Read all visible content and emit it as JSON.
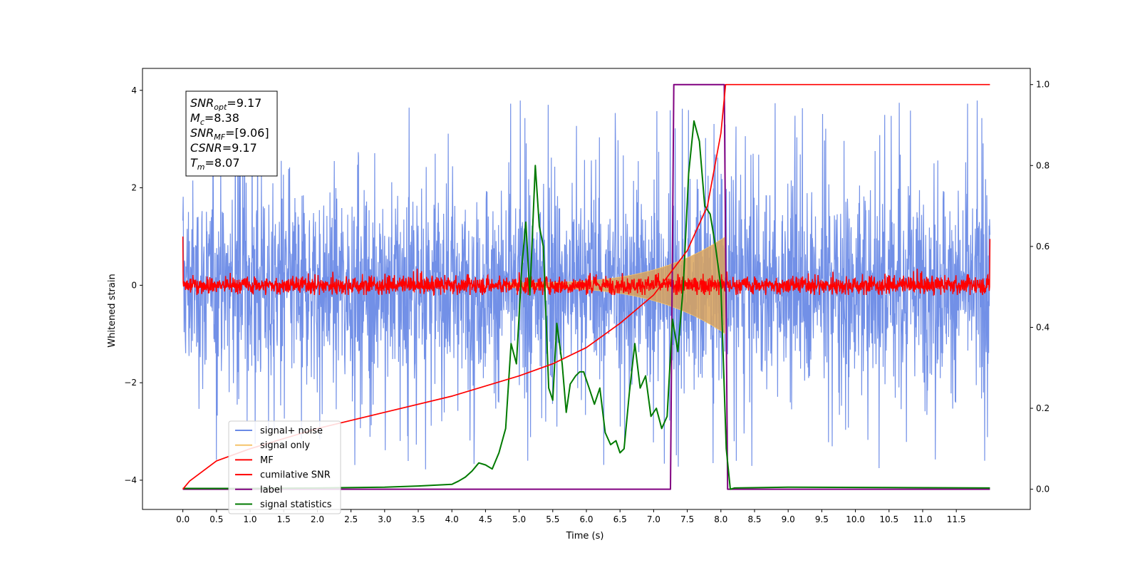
{
  "chart_data": {
    "type": "line",
    "xlabel": "Time (s)",
    "ylabel": "Whitened strain",
    "xlim": [
      -0.6,
      12.6
    ],
    "ylim_left": [
      -4.6,
      4.45
    ],
    "ylim_right": [
      -0.05,
      1.04
    ],
    "x_ticks": [
      "0.0",
      "0.5",
      "1.0",
      "1.5",
      "2.0",
      "2.5",
      "3.0",
      "3.5",
      "4.0",
      "4.5",
      "5.0",
      "5.5",
      "6.0",
      "6.5",
      "7.0",
      "7.5",
      "8.0",
      "8.5",
      "9.0",
      "9.5",
      "10.0",
      "10.5",
      "11.0",
      "11.5"
    ],
    "y_ticks_left": [
      "4",
      "2",
      "0",
      "−2",
      "−4"
    ],
    "y_ticks_right": [
      "1.0",
      "0.8",
      "0.6",
      "0.4",
      "0.2",
      "0.0"
    ],
    "legend_position": "lower-left",
    "annotation": {
      "snr_opt": {
        "base": "SNR",
        "sub": "opt",
        "value": "=9.17"
      },
      "mc": {
        "base": "M",
        "sub": "c",
        "value": "=8.38"
      },
      "snr_mf": {
        "base": "SNR",
        "sub": "MF",
        "value": "=[9.06]"
      },
      "csnr": {
        "base": "CSNR",
        "value": "=9.17"
      },
      "tm": {
        "base": "T",
        "sub": "m",
        "value": "=8.07"
      }
    },
    "series": [
      {
        "name": "signal+ noise",
        "axis": "left",
        "color": "#6a8ae6",
        "description": "noise band roughly ±2.2 with spikes to ±3.7, x from 0 to 12"
      },
      {
        "name": "signal only",
        "axis": "left",
        "color": "#f5c46a",
        "description": "chirp, amplitude grows from ~0.05 at t=5 to ~1.0 at t=8.07, then 0"
      },
      {
        "name": "MF",
        "axis": "left",
        "color": "#ff0000",
        "description": "band roughly ±0.2, ends at 1.0 / 0.95"
      },
      {
        "name": "cumilative SNR",
        "axis": "right",
        "color": "#ff0000",
        "x": [
          0,
          0.1,
          0.5,
          1,
          2,
          3,
          4,
          5,
          5.5,
          6,
          6.5,
          7,
          7.5,
          7.8,
          8.0,
          8.07,
          12
        ],
        "values": [
          0.0,
          0.02,
          0.07,
          0.1,
          0.15,
          0.19,
          0.23,
          0.28,
          0.31,
          0.35,
          0.41,
          0.48,
          0.59,
          0.7,
          0.88,
          1.0,
          1.0
        ]
      },
      {
        "name": "label",
        "axis": "right",
        "color": "#800080",
        "x": [
          0,
          7.25,
          7.3,
          8.05,
          8.1,
          12
        ],
        "values": [
          0,
          0,
          1,
          1,
          0,
          0
        ]
      },
      {
        "name": "signal statistics",
        "axis": "right",
        "color": "#007a00",
        "x": [
          0,
          1,
          2,
          3,
          3.5,
          4.0,
          4.1,
          4.2,
          4.3,
          4.4,
          4.5,
          4.6,
          4.7,
          4.8,
          4.88,
          4.96,
          5.04,
          5.1,
          5.16,
          5.24,
          5.3,
          5.36,
          5.44,
          5.5,
          5.56,
          5.64,
          5.7,
          5.76,
          5.84,
          5.9,
          5.96,
          6.04,
          6.12,
          6.2,
          6.28,
          6.36,
          6.44,
          6.5,
          6.56,
          6.64,
          6.72,
          6.8,
          6.88,
          6.96,
          7.04,
          7.12,
          7.2,
          7.28,
          7.36,
          7.44,
          7.52,
          7.6,
          7.68,
          7.76,
          7.84,
          7.92,
          8.0,
          8.08,
          8.14,
          8.2,
          9.0,
          10.5,
          12
        ],
        "values": [
          0.002,
          0.002,
          0.003,
          0.005,
          0.008,
          0.012,
          0.02,
          0.03,
          0.045,
          0.065,
          0.06,
          0.05,
          0.09,
          0.15,
          0.36,
          0.31,
          0.55,
          0.66,
          0.48,
          0.8,
          0.65,
          0.6,
          0.25,
          0.22,
          0.41,
          0.31,
          0.19,
          0.26,
          0.28,
          0.29,
          0.29,
          0.25,
          0.21,
          0.25,
          0.14,
          0.11,
          0.12,
          0.09,
          0.1,
          0.24,
          0.36,
          0.25,
          0.28,
          0.18,
          0.2,
          0.15,
          0.18,
          0.42,
          0.34,
          0.5,
          0.78,
          0.91,
          0.86,
          0.7,
          0.68,
          0.6,
          0.5,
          0.1,
          0.0,
          0.003,
          0.005,
          0.004,
          0.003
        ]
      }
    ]
  }
}
